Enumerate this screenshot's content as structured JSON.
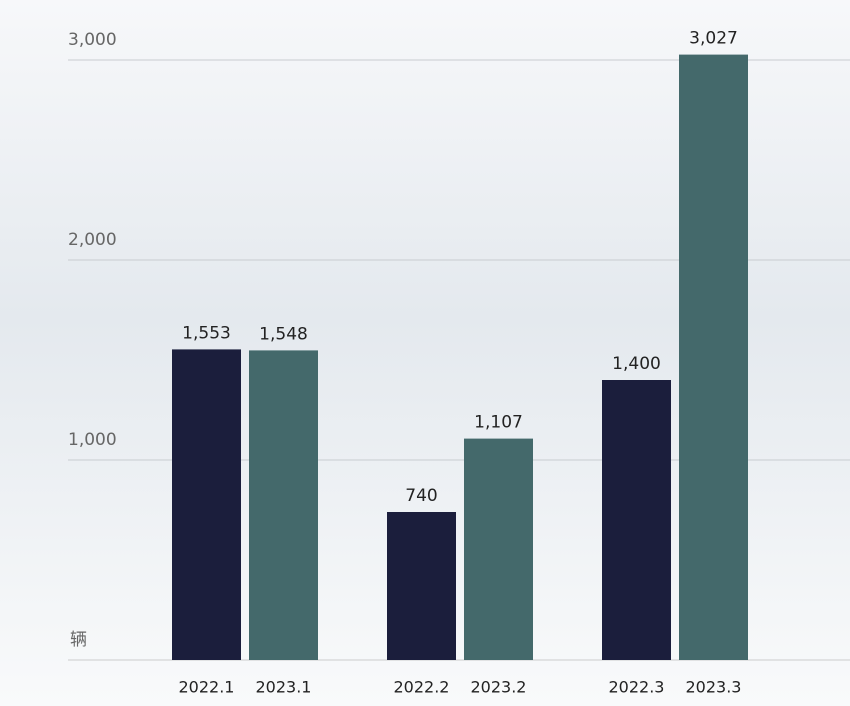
{
  "chart_data": {
    "type": "bar",
    "unit_label": "辆",
    "categories": [
      "2022.1",
      "2023.1",
      "2022.2",
      "2023.2",
      "2022.3",
      "2023.3"
    ],
    "values": [
      1553,
      1548,
      740,
      1107,
      1400,
      3027
    ],
    "value_labels": [
      "1,553",
      "1,548",
      "740",
      "1,107",
      "1,400",
      "3,027"
    ],
    "colors": [
      "#1b1e3c",
      "#44696b",
      "#1b1e3c",
      "#44696b",
      "#1b1e3c",
      "#44696b"
    ],
    "ylim": [
      0,
      3000
    ],
    "yticks": [
      {
        "value": 1000,
        "label": "1,000"
      },
      {
        "value": 2000,
        "label": "2,000"
      },
      {
        "value": 3000,
        "label": "3,000"
      }
    ],
    "grid": true
  }
}
